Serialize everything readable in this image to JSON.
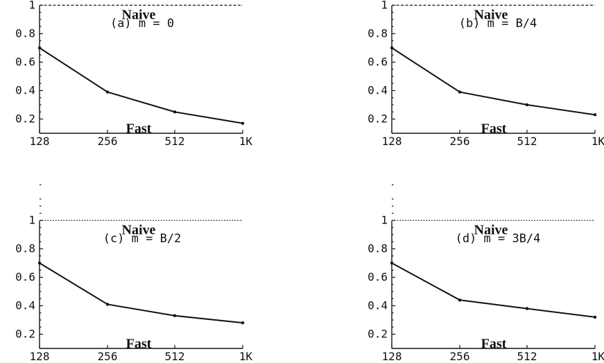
{
  "chart_data": [
    {
      "type": "line",
      "title": "(a) m = 0",
      "x": [
        "128",
        "256",
        "512",
        "1K"
      ],
      "series": [
        {
          "name": "Naive",
          "values": [
            1,
            1,
            1,
            1
          ],
          "style": "dashed"
        },
        {
          "name": "Fast",
          "values": [
            0.7,
            0.39,
            0.25,
            0.17
          ],
          "style": "solid"
        }
      ],
      "yticks": [
        "0.2",
        "0.4",
        "0.6",
        "0.8",
        "1"
      ],
      "ylim": [
        0.1,
        1.35
      ]
    },
    {
      "type": "line",
      "title": "(b) m = B/4",
      "x": [
        "128",
        "256",
        "512",
        "1K"
      ],
      "series": [
        {
          "name": "Naive",
          "values": [
            1,
            1,
            1,
            1
          ],
          "style": "dashed"
        },
        {
          "name": "Fast",
          "values": [
            0.7,
            0.39,
            0.3,
            0.23
          ],
          "style": "solid"
        }
      ],
      "yticks": [
        "0.2",
        "0.4",
        "0.6",
        "0.8",
        "1"
      ],
      "ylim": [
        0.1,
        1.35
      ]
    },
    {
      "type": "line",
      "title": "(c) m = B/2",
      "x": [
        "128",
        "256",
        "512",
        "1K"
      ],
      "series": [
        {
          "name": "Naive",
          "values": [
            1,
            1,
            1,
            1
          ],
          "style": "dotted"
        },
        {
          "name": "Fast",
          "values": [
            0.7,
            0.41,
            0.33,
            0.28
          ],
          "style": "solid"
        }
      ],
      "yticks": [
        "0.2",
        "0.4",
        "0.6",
        "0.8",
        "1"
      ],
      "ylim": [
        0.1,
        1.35
      ]
    },
    {
      "type": "line",
      "title": "(d) m = 3B/4",
      "x": [
        "128",
        "256",
        "512",
        "1K"
      ],
      "series": [
        {
          "name": "Naive",
          "values": [
            1,
            1,
            1,
            1
          ],
          "style": "dotted"
        },
        {
          "name": "Fast",
          "values": [
            0.7,
            0.44,
            0.38,
            0.32
          ],
          "style": "solid"
        }
      ],
      "yticks": [
        "0.2",
        "0.4",
        "0.6",
        "0.8",
        "1"
      ],
      "ylim": [
        0.1,
        1.35
      ]
    }
  ]
}
